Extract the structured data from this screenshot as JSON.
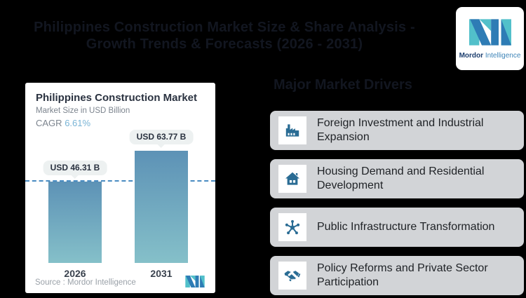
{
  "page": {
    "background": "#000000",
    "title_line1": "Philippines Construction Market Size & Share Analysis -",
    "title_line2": "Growth Trends & Forecasts (2026 - 2031)"
  },
  "logo": {
    "brand_bold": "Mordor",
    "brand_light": "Intelligence",
    "teal": "#52c0ca",
    "blue": "#2e7cb5"
  },
  "chart_card": {
    "title": "Philippines Construction Market",
    "subtitle": "Market Size in USD Billion",
    "cagr_label": "CAGR",
    "cagr_value": "6.61%",
    "source_label": "Source :  Mordor Intelligence"
  },
  "chart_data": {
    "type": "bar",
    "title": "Philippines Construction Market",
    "subtitle": "Market Size in USD Billion",
    "cagr_percent": 6.61,
    "categories": [
      "2026",
      "2031"
    ],
    "values": [
      46.31,
      63.77
    ],
    "value_labels": [
      "USD 46.31 B",
      "USD 63.77 B"
    ],
    "ylim": [
      0,
      70
    ],
    "reference_line_at": 46.31,
    "grid": "off",
    "bar_gradient_top": "#5d92b6",
    "bar_gradient_bottom": "#85c0c9",
    "reference_line_color": "#4a8cc2",
    "source": "Source :  Mordor Intelligence"
  },
  "drivers": {
    "heading": "Major Market Drivers",
    "items": [
      {
        "icon": "factory-icon",
        "label": "Foreign Investment and Industrial Expansion"
      },
      {
        "icon": "house-icon",
        "label": "Housing Demand and Residential Development"
      },
      {
        "icon": "network-icon",
        "label": "Public Infrastructure Transformation"
      },
      {
        "icon": "handshake-icon",
        "label": "Policy Reforms and Private Sector Participation"
      }
    ]
  }
}
